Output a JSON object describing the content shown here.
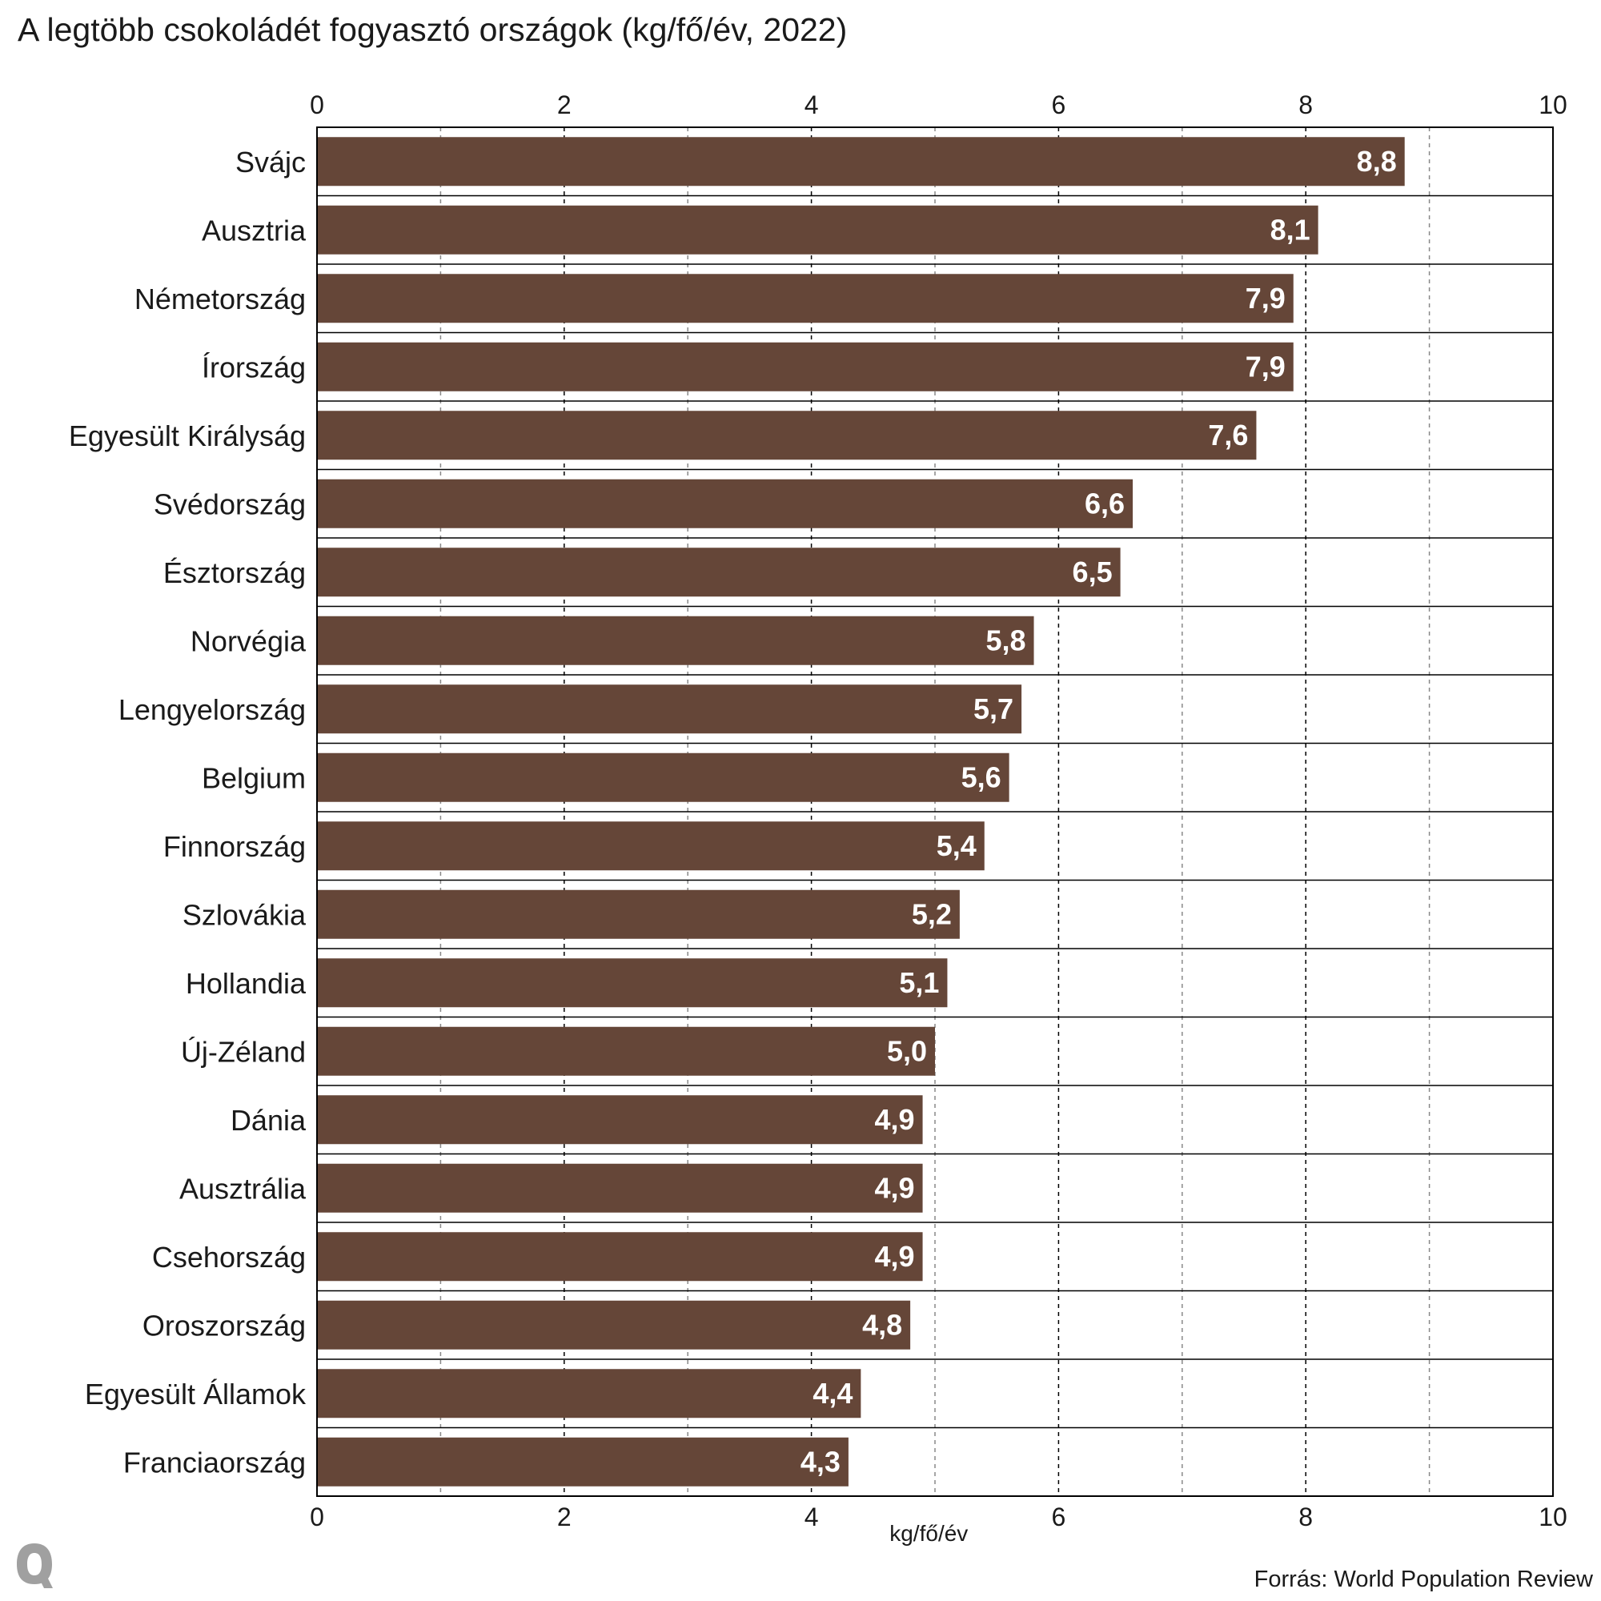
{
  "title": "A legtöbb csokoládét fogyasztó országok (kg/fő/év, 2022)",
  "source": "Forrás: World Population Review",
  "logo_icon": "q-logo-icon",
  "colors": {
    "bar": "#654638",
    "grid_major": "#000000",
    "grid_minor": "#888888",
    "frame": "#000000"
  },
  "chart_data": {
    "type": "bar",
    "orientation": "horizontal",
    "title": "A legtöbb csokoládét fogyasztó országok (kg/fő/év, 2022)",
    "xlabel": "kg/fő/év",
    "ylabel": "",
    "xlim": [
      0,
      10
    ],
    "xticks": [
      0,
      2,
      4,
      6,
      8,
      10
    ],
    "xtick_labels": [
      "0",
      "2",
      "4",
      "6",
      "8",
      "10"
    ],
    "grid": true,
    "categories": [
      "Svájc",
      "Ausztria",
      "Németország",
      "Írország",
      "Egyesült Királyság",
      "Svédország",
      "Észtország",
      "Norvégia",
      "Lengyelország",
      "Belgium",
      "Finnország",
      "Szlovákia",
      "Hollandia",
      "Új-Zéland",
      "Dánia",
      "Ausztrália",
      "Csehország",
      "Oroszország",
      "Egyesült Államok",
      "Franciaország"
    ],
    "values": [
      8.8,
      8.1,
      7.9,
      7.9,
      7.6,
      6.6,
      6.5,
      5.8,
      5.7,
      5.6,
      5.4,
      5.2,
      5.1,
      5.0,
      4.9,
      4.9,
      4.9,
      4.8,
      4.4,
      4.3
    ],
    "value_labels": [
      "8,8",
      "8,1",
      "7,9",
      "7,9",
      "7,6",
      "6,6",
      "6,5",
      "5,8",
      "5,7",
      "5,6",
      "5,4",
      "5,2",
      "5,1",
      "5,0",
      "4,9",
      "4,9",
      "4,9",
      "4,8",
      "4,4",
      "4,3"
    ]
  }
}
